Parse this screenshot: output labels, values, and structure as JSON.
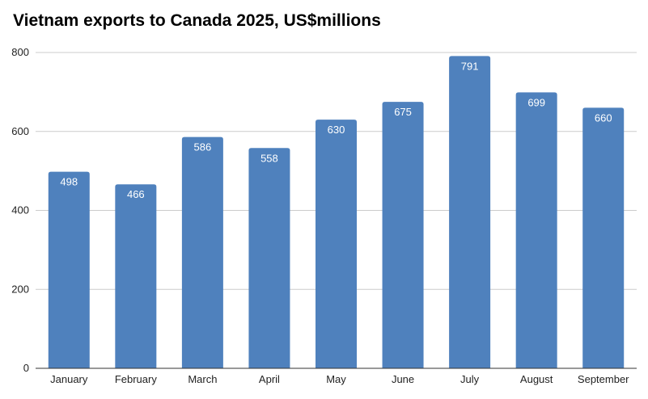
{
  "chart_data": {
    "type": "bar",
    "title": "Vietnam exports to Canada 2025, US$millions",
    "xlabel": "",
    "ylabel": "",
    "categories": [
      "January",
      "February",
      "March",
      "April",
      "May",
      "June",
      "July",
      "August",
      "September"
    ],
    "values": [
      498,
      466,
      586,
      558,
      630,
      675,
      791,
      699,
      660
    ],
    "ylim": [
      0,
      800
    ],
    "yticks": [
      0,
      200,
      400,
      600,
      800
    ],
    "grid": true,
    "legend": "none",
    "colors": {
      "bar": "#4f81bd",
      "grid": "#cccccc",
      "axis": "#333333",
      "label": "#ffffff",
      "text": "#222222"
    }
  }
}
